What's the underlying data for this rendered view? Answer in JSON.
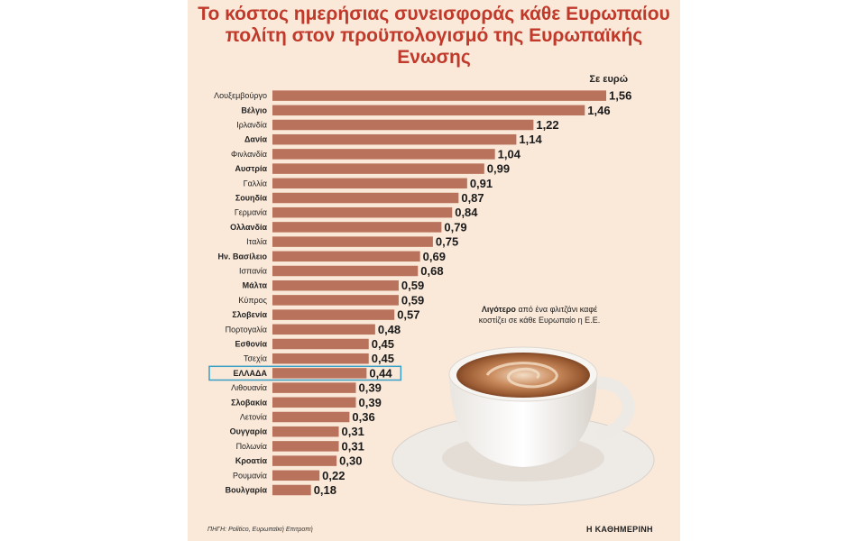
{
  "chart_data": {
    "type": "bar",
    "orientation": "horizontal",
    "title": "Το κόστος ημερήσιας συνεισφοράς κάθε Ευρωπαίου πολίτη στον προϋπολογισμό της Ευρωπαϊκής Ενωσης",
    "unit_label": "Σε ευρώ",
    "categories": [
      "Λουξεμβούργο",
      "Βέλγιο",
      "Ιρλανδία",
      "Δανία",
      "Φινλανδία",
      "Αυστρία",
      "Γαλλία",
      "Σουηδία",
      "Γερμανία",
      "Ολλανδία",
      "Ιταλία",
      "Ην. Βασίλειο",
      "Ισπανία",
      "Μάλτα",
      "Κύπρος",
      "Σλοβενία",
      "Πορτογαλία",
      "Εσθονία",
      "Τσεχία",
      "ΕΛΛΑΔΑ",
      "Λιθουανία",
      "Σλοβακία",
      "Λετονία",
      "Ουγγαρία",
      "Πολωνία",
      "Κροατία",
      "Ρουμανία",
      "Βουλγαρία"
    ],
    "value_labels": [
      "1,56",
      "1,46",
      "1,22",
      "1,14",
      "1,04",
      "0,99",
      "0,91",
      "0,87",
      "0,84",
      "0,79",
      "0,75",
      "0,69",
      "0,68",
      "0,59",
      "0,59",
      "0,57",
      "0,48",
      "0,45",
      "0,45",
      "0,44",
      "0,39",
      "0,39",
      "0,36",
      "0,31",
      "0,31",
      "0,30",
      "0,22",
      "0,18"
    ],
    "values": [
      1.56,
      1.46,
      1.22,
      1.14,
      1.04,
      0.99,
      0.91,
      0.87,
      0.84,
      0.79,
      0.75,
      0.69,
      0.68,
      0.59,
      0.59,
      0.57,
      0.48,
      0.45,
      0.45,
      0.44,
      0.39,
      0.39,
      0.36,
      0.31,
      0.31,
      0.3,
      0.22,
      0.18
    ],
    "bold_categories": [
      "Βέλγιο",
      "Δανία",
      "Αυστρία",
      "Σουηδία",
      "Ολλανδία",
      "Ην. Βασίλειο",
      "Μάλτα",
      "Σλοβενία",
      "Εσθονία",
      "ΕΛΛΑΔΑ",
      "Σλοβακία",
      "Ουγγαρία",
      "Κροατία",
      "Βουλγαρία"
    ],
    "highlight_category": "ΕΛΛΑΔΑ",
    "bar_color": "#b9735c",
    "highlight_color": "#3a9fc6",
    "background_color": "#fae9d9",
    "title_color": "#c0392b"
  },
  "annotation": {
    "bold_part": "Λιγότερο",
    "rest": "από ένα φλιτζάνι καφέ κοστίζει σε κάθε Ευρωπαίο η Ε.Ε."
  },
  "source": "ΠΗΓΗ: Politico, Ευρωπαϊκή Επιτροπή",
  "brand": "Η ΚΑΘΗΜΕΡΙΝΗ",
  "illustration": "coffee-cup-icon"
}
